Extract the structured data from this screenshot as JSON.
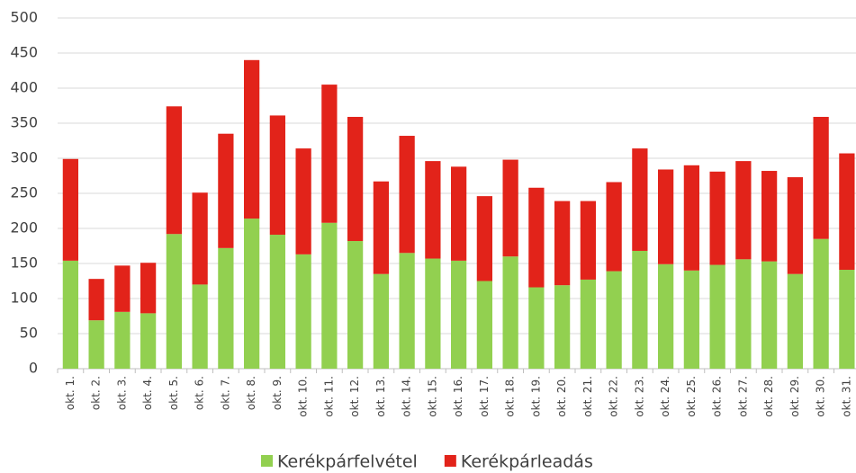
{
  "chart_data": {
    "type": "stacked_bar",
    "categories": [
      "okt. 1.",
      "okt. 2.",
      "okt. 3.",
      "okt. 4.",
      "okt. 5.",
      "okt. 6.",
      "okt. 7.",
      "okt. 8.",
      "okt. 9.",
      "okt. 10.",
      "okt. 11.",
      "okt. 12.",
      "okt. 13.",
      "okt. 14.",
      "okt. 15.",
      "okt. 16.",
      "okt. 17.",
      "okt. 18.",
      "okt. 19.",
      "okt. 20.",
      "okt. 21.",
      "okt. 22.",
      "okt. 23.",
      "okt. 24.",
      "okt. 25.",
      "okt. 26.",
      "okt. 27.",
      "okt. 28.",
      "okt. 29.",
      "okt. 30.",
      "okt. 31."
    ],
    "series": [
      {
        "name": "Kerékpárfelvétel",
        "color": "#92d050",
        "values": [
          154,
          69,
          81,
          79,
          192,
          120,
          172,
          214,
          191,
          163,
          208,
          182,
          135,
          165,
          157,
          154,
          125,
          160,
          116,
          119,
          127,
          139,
          168,
          149,
          140,
          148,
          156,
          153,
          135,
          185,
          141
        ]
      },
      {
        "name": "Kerékpárleadás",
        "color": "#e2231a",
        "values": [
          145,
          59,
          66,
          72,
          182,
          131,
          163,
          226,
          170,
          151,
          197,
          177,
          132,
          167,
          139,
          134,
          121,
          138,
          142,
          120,
          112,
          127,
          146,
          135,
          150,
          133,
          140,
          129,
          138,
          174,
          166
        ]
      }
    ],
    "ylim": [
      0,
      500
    ],
    "yticks": [
      0,
      50,
      100,
      150,
      200,
      250,
      300,
      350,
      400,
      450,
      500
    ],
    "grid": true
  }
}
